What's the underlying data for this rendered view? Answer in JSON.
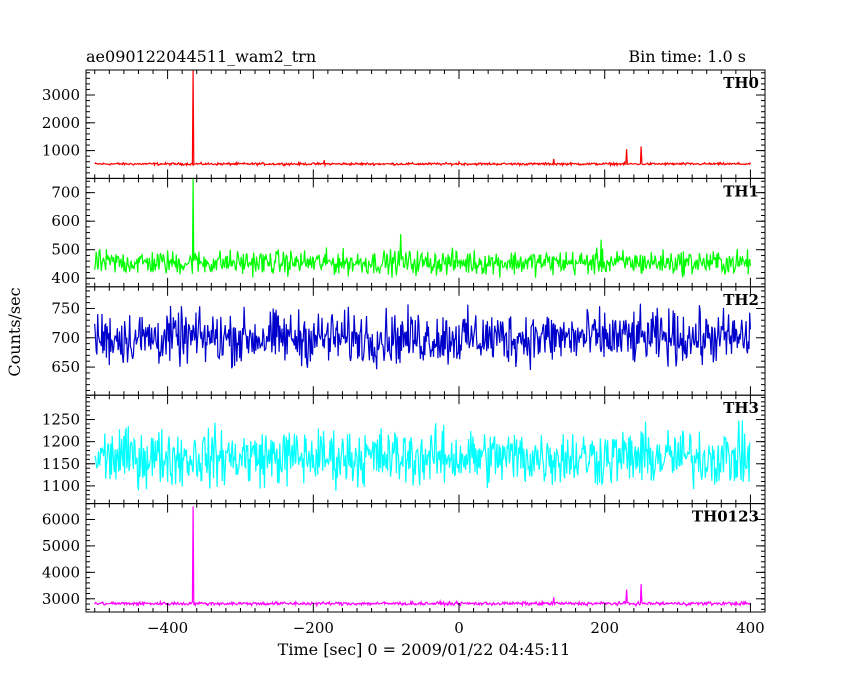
{
  "chart_data": {
    "type": "line",
    "title": "ae090122044511_wam2_trn",
    "subtitle": "Bin time: 1.0 s",
    "xlabel": "Time [sec] 0 = 2009/01/22 04:45:11",
    "ylabel": "Counts/sec",
    "xlim": [
      -512,
      420
    ],
    "x_ticks": [
      -400,
      -200,
      0,
      200,
      400
    ],
    "x_tick_labels": [
      "−400",
      "−200",
      "0",
      "200",
      "400"
    ],
    "panels": [
      {
        "name": "TH0",
        "color": "#ff0000",
        "ylim": [
          0,
          3900
        ],
        "y_ticks": [
          1000,
          2000,
          3000
        ],
        "y_tick_labels": [
          "1000",
          "2000",
          "3000"
        ],
        "baseline": 520,
        "noise": 30,
        "spikes": [
          [
            -365,
            3900
          ],
          [
            -185,
            650
          ],
          [
            0,
            590
          ],
          [
            130,
            700
          ],
          [
            230,
            1050
          ],
          [
            250,
            1150
          ]
        ]
      },
      {
        "name": "TH1",
        "color": "#00ff00",
        "ylim": [
          370,
          750
        ],
        "y_ticks": [
          400,
          500,
          600,
          700
        ],
        "y_tick_labels": [
          "400",
          "500",
          "600",
          "700"
        ],
        "baseline": 455,
        "noise": 30,
        "spikes": [
          [
            -365,
            750
          ],
          [
            -80,
            555
          ],
          [
            195,
            535
          ]
        ]
      },
      {
        "name": "TH2",
        "color": "#0000cc",
        "ylim": [
          602,
          787
        ],
        "y_ticks": [
          650,
          700,
          750
        ],
        "y_tick_labels": [
          "650",
          "700",
          "750"
        ],
        "baseline": 700,
        "noise": 32,
        "spikes": []
      },
      {
        "name": "TH3",
        "color": "#00ffff",
        "ylim": [
          1060,
          1305
        ],
        "y_ticks": [
          1100,
          1150,
          1200,
          1250
        ],
        "y_tick_labels": [
          "1100",
          "1150",
          "1200",
          "1250"
        ],
        "baseline": 1165,
        "noise": 45,
        "spikes": []
      },
      {
        "name": "TH0123",
        "color": "#ff00ff",
        "ylim": [
          2500,
          6600
        ],
        "y_ticks": [
          3000,
          4000,
          5000,
          6000
        ],
        "y_tick_labels": [
          "3000",
          "4000",
          "5000",
          "6000"
        ],
        "baseline": 2820,
        "noise": 45,
        "spikes": [
          [
            -365,
            6500
          ],
          [
            230,
            3350
          ],
          [
            250,
            3550
          ],
          [
            130,
            3050
          ]
        ]
      }
    ]
  }
}
